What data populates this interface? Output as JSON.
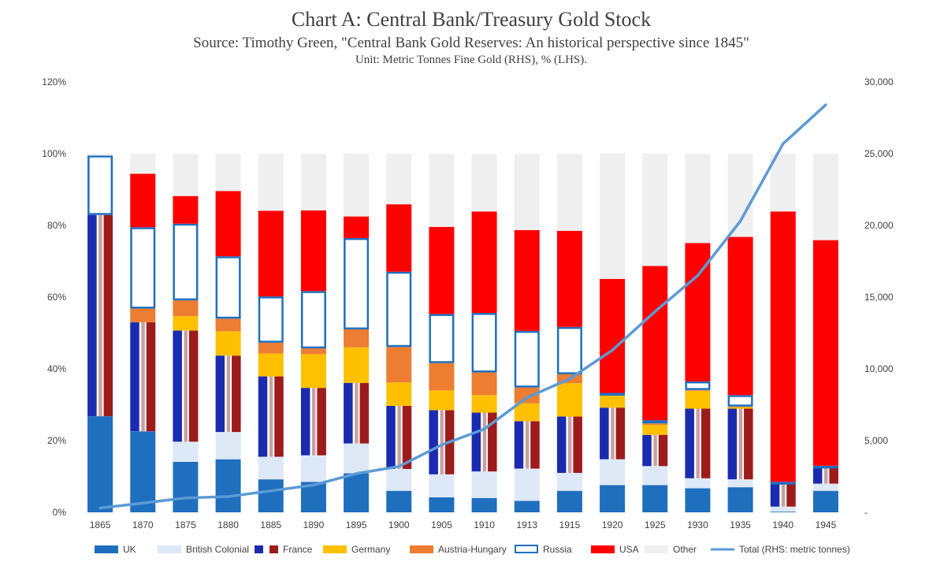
{
  "chart_data": {
    "type": "bar",
    "stacked": true,
    "title": "Chart A: Central Bank/Treasury Gold Stock",
    "subtitle": "Source: Timothy  Green, \"Central Bank Gold Reserves: An historical perspective since 1845\"",
    "unit": "Unit:  Metric Tonnes Fine Gold (RHS),  % (LHS).",
    "categories": [
      "1865",
      "1870",
      "1875",
      "1880",
      "1885",
      "1890",
      "1895",
      "1900",
      "1905",
      "1910",
      "1913",
      "1915",
      "1920",
      "1925",
      "1930",
      "1935",
      "1940",
      "1945"
    ],
    "left_axis": {
      "ticks": [
        "0%",
        "20%",
        "40%",
        "60%",
        "80%",
        "100%",
        "120%"
      ],
      "ylim": [
        0,
        120
      ]
    },
    "right_axis": {
      "ticks": [
        "-",
        "5,000",
        "10,000",
        "15,000",
        "20,000",
        "25,000",
        "30,000"
      ],
      "ylim": [
        0,
        30000
      ]
    },
    "colors": {
      "UK": "#1f6fbf",
      "British Colonial": "#dde9f7",
      "France_blue": "#1b2bb0",
      "France_red": "#9e1b1b",
      "Germany": "#ffc000",
      "Austria-Hungary": "#ed7d31",
      "Russia": "#1f6fbf",
      "USA": "#ff0000",
      "Other": "#efefef",
      "Total": "#5b9bd5"
    },
    "series": [
      {
        "name": "UK",
        "values": [
          26.8,
          22.6,
          14.1,
          14.8,
          9.2,
          8.5,
          10.9,
          6.0,
          4.2,
          4.0,
          3.2,
          6.0,
          7.6,
          7.6,
          6.7,
          7.0,
          0.2,
          6.0
        ]
      },
      {
        "name": "British Colonial",
        "values": [
          0,
          0,
          5.6,
          7.6,
          6.3,
          7.4,
          8.3,
          6.1,
          6.4,
          7.4,
          9.0,
          5.0,
          7.2,
          5.3,
          2.8,
          2.2,
          1.4,
          2.0
        ]
      },
      {
        "name": "France",
        "values": [
          56.1,
          30.4,
          31.0,
          21.3,
          22.4,
          18.8,
          16.9,
          17.6,
          17.9,
          16.4,
          13.2,
          15.7,
          14.4,
          8.7,
          19.4,
          19.7,
          6.8,
          4.9
        ]
      },
      {
        "name": "Germany",
        "values": [
          0,
          0,
          4.0,
          6.8,
          6.4,
          9.4,
          9.9,
          6.5,
          5.5,
          4.9,
          5.0,
          9.3,
          3.4,
          2.8,
          5.0,
          0.4,
          0,
          0
        ]
      },
      {
        "name": "Austria-Hungary",
        "values": [
          0,
          3.8,
          4.4,
          3.5,
          3.0,
          1.6,
          5.0,
          9.9,
          7.6,
          6.3,
          4.4,
          2.5,
          0.4,
          0.4,
          0.2,
          0.2,
          0,
          0
        ]
      },
      {
        "name": "Russia",
        "values": [
          16.6,
          22.7,
          21.4,
          17.4,
          12.9,
          16.0,
          25.5,
          21.0,
          13.7,
          16.6,
          15.8,
          13.2,
          0.3,
          0.9,
          2.4,
          3.2,
          0.1,
          0.1
        ]
      },
      {
        "name": "USA",
        "values": [
          0,
          14.9,
          7.7,
          18.2,
          23.9,
          22.5,
          6.0,
          18.8,
          24.3,
          28.3,
          28.1,
          26.8,
          31.8,
          43.0,
          38.6,
          44.1,
          75.4,
          62.9
        ]
      },
      {
        "name": "Other",
        "values": [
          0.5,
          5.6,
          11.8,
          10.4,
          15.9,
          15.8,
          17.5,
          14.1,
          20.4,
          15.9,
          21.3,
          21.5,
          35.0,
          31.3,
          24.9,
          23.2,
          16.1,
          24.1
        ]
      }
    ],
    "line_series": {
      "name": "Total (RHS: metric tonnes)",
      "axis": "right",
      "values": [
        300,
        650,
        1000,
        1100,
        1500,
        1900,
        2700,
        3200,
        4700,
        5800,
        8000,
        9300,
        11300,
        14000,
        16500,
        20300,
        25700,
        28400
      ]
    },
    "legend": [
      "UK",
      "British Colonial",
      "France",
      "Germany",
      "Austria-Hungary",
      "Russia",
      "USA",
      "Other",
      "Total (RHS: metric tonnes)"
    ],
    "legend_position": "bottom"
  }
}
